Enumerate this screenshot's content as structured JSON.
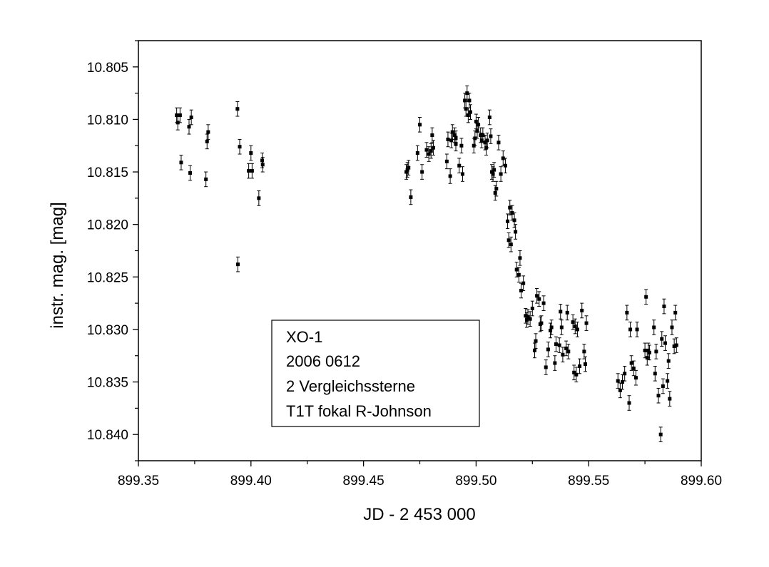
{
  "chart_data": {
    "type": "scatter",
    "xlabel": "JD - 2 453 000",
    "ylabel": "instr. mag. [mag]",
    "xlim": [
      899.35,
      899.6
    ],
    "ylim": [
      10.8025,
      10.8425
    ],
    "y_inverted": true,
    "grid": false,
    "legend": "none",
    "x_ticks": [
      "899.35",
      "899.40",
      "899.45",
      "899.50",
      "899.55",
      "899.60"
    ],
    "y_ticks": [
      "10.805",
      "10.810",
      "10.815",
      "10.820",
      "10.825",
      "10.830",
      "10.835",
      "10.840"
    ],
    "annotation": {
      "lines": [
        "XO-1",
        "2006 0612",
        "2 Vergleichssterne",
        "T1T fokal R-Johnson"
      ]
    },
    "marker_color": "#000000",
    "error_bar": 0.0007,
    "points": [
      [
        899.367,
        10.8096
      ],
      [
        899.3675,
        10.8103
      ],
      [
        899.3685,
        10.8096
      ],
      [
        899.369,
        10.8141
      ],
      [
        899.3725,
        10.8107
      ],
      [
        899.373,
        10.8151
      ],
      [
        899.3735,
        10.8098
      ],
      [
        899.38,
        10.8157
      ],
      [
        899.3805,
        10.8121
      ],
      [
        899.381,
        10.8112
      ],
      [
        899.394,
        10.809
      ],
      [
        899.3942,
        10.8238
      ],
      [
        899.395,
        10.8126
      ],
      [
        899.399,
        10.8149
      ],
      [
        899.4,
        10.8132
      ],
      [
        899.4005,
        10.8149
      ],
      [
        899.4035,
        10.8175
      ],
      [
        899.405,
        10.8139
      ],
      [
        899.4052,
        10.8143
      ],
      [
        899.469,
        10.815
      ],
      [
        899.4695,
        10.8148
      ],
      [
        899.47,
        10.8146
      ],
      [
        899.471,
        10.8174
      ],
      [
        899.474,
        10.8132
      ],
      [
        899.475,
        10.8105
      ],
      [
        899.476,
        10.815
      ],
      [
        899.478,
        10.8129
      ],
      [
        899.479,
        10.8133
      ],
      [
        899.48,
        10.813
      ],
      [
        899.4805,
        10.8115
      ],
      [
        899.481,
        10.8127
      ],
      [
        899.487,
        10.814
      ],
      [
        899.4875,
        10.8119
      ],
      [
        899.4885,
        10.8154
      ],
      [
        899.489,
        10.812
      ],
      [
        899.4895,
        10.8112
      ],
      [
        899.4905,
        10.8115
      ],
      [
        899.491,
        10.8118
      ],
      [
        899.491,
        10.8123
      ],
      [
        899.4925,
        10.8144
      ],
      [
        899.4935,
        10.8125
      ],
      [
        899.494,
        10.8152
      ],
      [
        899.495,
        10.8082
      ],
      [
        899.4955,
        10.809
      ],
      [
        899.496,
        10.8075
      ],
      [
        899.4965,
        10.8096
      ],
      [
        899.497,
        10.8082
      ],
      [
        899.4975,
        10.8093
      ],
      [
        899.499,
        10.8125
      ],
      [
        899.4995,
        10.8118
      ],
      [
        899.5,
        10.8102
      ],
      [
        899.5005,
        10.8111
      ],
      [
        899.501,
        10.8105
      ],
      [
        899.502,
        10.8115
      ],
      [
        899.5025,
        10.812
      ],
      [
        899.503,
        10.8115
      ],
      [
        899.504,
        10.8122
      ],
      [
        899.5045,
        10.8127
      ],
      [
        899.505,
        10.812
      ],
      [
        899.506,
        10.8098
      ],
      [
        899.5065,
        10.8116
      ],
      [
        899.507,
        10.815
      ],
      [
        899.5075,
        10.8152
      ],
      [
        899.508,
        10.8148
      ],
      [
        899.5085,
        10.817
      ],
      [
        899.509,
        10.8166
      ],
      [
        899.51,
        10.8122
      ],
      [
        899.511,
        10.8152
      ],
      [
        899.512,
        10.8137
      ],
      [
        899.513,
        10.8144
      ],
      [
        899.514,
        10.8197
      ],
      [
        899.5145,
        10.8215
      ],
      [
        899.515,
        10.8184
      ],
      [
        899.5155,
        10.8219
      ],
      [
        899.516,
        10.8189
      ],
      [
        899.517,
        10.8196
      ],
      [
        899.5175,
        10.8207
      ],
      [
        899.518,
        10.8243
      ],
      [
        899.519,
        10.8248
      ],
      [
        899.5195,
        10.8232
      ],
      [
        899.52,
        10.8263
      ],
      [
        899.521,
        10.8256
      ],
      [
        899.522,
        10.8287
      ],
      [
        899.5225,
        10.8291
      ],
      [
        899.523,
        10.8288
      ],
      [
        899.524,
        10.829
      ],
      [
        899.525,
        10.828
      ],
      [
        899.526,
        10.832
      ],
      [
        899.5265,
        10.8311
      ],
      [
        899.527,
        10.8268
      ],
      [
        899.528,
        10.8271
      ],
      [
        899.5285,
        10.8295
      ],
      [
        899.529,
        10.8294
      ],
      [
        899.53,
        10.8275
      ],
      [
        899.531,
        10.8336
      ],
      [
        899.532,
        10.8319
      ],
      [
        899.533,
        10.8301
      ],
      [
        899.5335,
        10.8298
      ],
      [
        899.535,
        10.8332
      ],
      [
        899.5355,
        10.8314
      ],
      [
        899.537,
        10.8315
      ],
      [
        899.5375,
        10.8283
      ],
      [
        899.538,
        10.8298
      ],
      [
        899.5385,
        10.8324
      ],
      [
        899.54,
        10.8318
      ],
      [
        899.5405,
        10.8284
      ],
      [
        899.541,
        10.8321
      ],
      [
        899.543,
        10.8293
      ],
      [
        899.5435,
        10.8341
      ],
      [
        899.544,
        10.8297
      ],
      [
        899.5445,
        10.8343
      ],
      [
        899.545,
        10.83
      ],
      [
        899.546,
        10.8335
      ],
      [
        899.547,
        10.8282
      ],
      [
        899.548,
        10.8321
      ],
      [
        899.5485,
        10.8333
      ],
      [
        899.549,
        10.8294
      ],
      [
        899.563,
        10.8349
      ],
      [
        899.564,
        10.8358
      ],
      [
        899.565,
        10.835
      ],
      [
        899.566,
        10.8342
      ],
      [
        899.567,
        10.8284
      ],
      [
        899.568,
        10.837
      ],
      [
        899.5685,
        10.83
      ],
      [
        899.569,
        10.8332
      ],
      [
        899.57,
        10.8337
      ],
      [
        899.571,
        10.8346
      ],
      [
        899.5715,
        10.83
      ],
      [
        899.575,
        10.832
      ],
      [
        899.5755,
        10.8269
      ],
      [
        899.576,
        10.8327
      ],
      [
        899.5765,
        10.832
      ],
      [
        899.577,
        10.8322
      ],
      [
        899.579,
        10.8298
      ],
      [
        899.5795,
        10.8342
      ],
      [
        899.58,
        10.8321
      ],
      [
        899.581,
        10.8363
      ],
      [
        899.582,
        10.84
      ],
      [
        899.5825,
        10.8309
      ],
      [
        899.583,
        10.8354
      ],
      [
        899.5835,
        10.8278
      ],
      [
        899.584,
        10.8313
      ],
      [
        899.585,
        10.8349
      ],
      [
        899.5855,
        10.833
      ],
      [
        899.586,
        10.8366
      ],
      [
        899.587,
        10.8298
      ],
      [
        899.588,
        10.8316
      ],
      [
        899.5885,
        10.8284
      ],
      [
        899.589,
        10.8315
      ]
    ]
  }
}
